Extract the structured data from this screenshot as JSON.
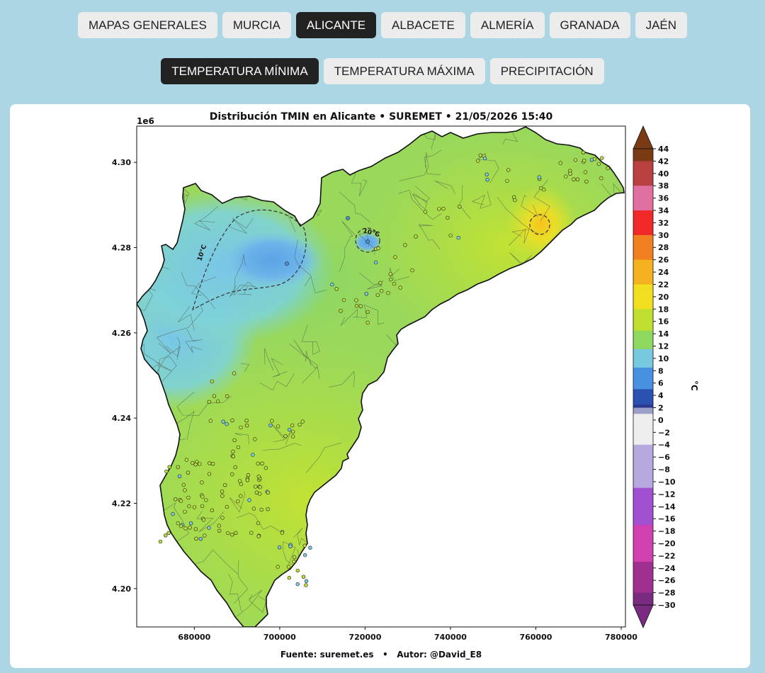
{
  "nav": {
    "regions": [
      {
        "label": "MAPAS GENERALES",
        "active": false
      },
      {
        "label": "MURCIA",
        "active": false
      },
      {
        "label": "ALICANTE",
        "active": true
      },
      {
        "label": "ALBACETE",
        "active": false
      },
      {
        "label": "ALMERÍA",
        "active": false
      },
      {
        "label": "GRANADA",
        "active": false
      },
      {
        "label": "JAÉN",
        "active": false
      }
    ],
    "variables": [
      {
        "label": "TEMPERATURA MÍNIMA",
        "active": true
      },
      {
        "label": "TEMPERATURA MÁXIMA",
        "active": false
      },
      {
        "label": "PRECIPITACIÓN",
        "active": false
      }
    ]
  },
  "map": {
    "title": "Distribución TMIN en Alicante • SUREMET • 21/05/2026 15:40",
    "footer": "Fuente: suremet.es   •   Autor: @David_E8",
    "y_offset_label": "1e6",
    "x_ticks": [
      "680000",
      "700000",
      "720000",
      "740000",
      "760000",
      "780000"
    ],
    "y_ticks": [
      "4.30",
      "4.28",
      "4.26",
      "4.24",
      "4.22",
      "4.20"
    ],
    "x_range": [
      666500,
      781000
    ],
    "y_range": [
      4191000,
      4308500
    ],
    "contour_label": "10°C",
    "colorbar": {
      "label": "°C",
      "ticks": [
        "44",
        "42",
        "40",
        "38",
        "36",
        "34",
        "32",
        "30",
        "28",
        "26",
        "24",
        "22",
        "20",
        "18",
        "16",
        "14",
        "12",
        "10",
        "8",
        "6",
        "4",
        "2",
        "0",
        "−2",
        "−4",
        "−6",
        "−8",
        "−10",
        "−12",
        "−14",
        "−16",
        "−18",
        "−20",
        "−22",
        "−24",
        "−26",
        "−28",
        "−30"
      ],
      "range": [
        -30,
        44
      ]
    },
    "colors": {
      "cold_core": "#6fb0e8",
      "cool": "#7fcfe0",
      "mild": "#8fd870",
      "warm": "#b9e23a",
      "hot_spot": "#f0d21e"
    }
  }
}
